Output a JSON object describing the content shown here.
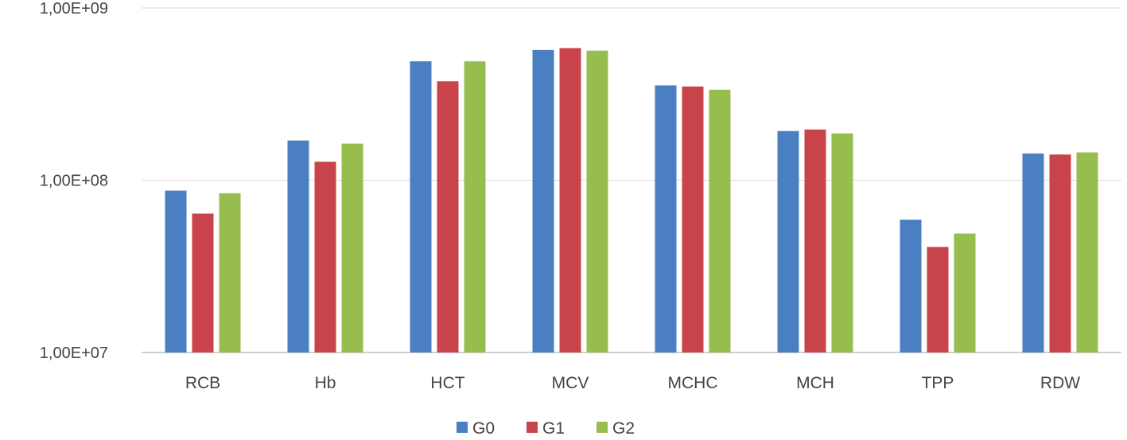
{
  "chart_data": {
    "type": "bar",
    "y_scale": "log10",
    "ylim": [
      10000000,
      1000000000
    ],
    "y_ticks": [
      {
        "value": 1000000000,
        "label": "1,00E+09"
      },
      {
        "value": 100000000,
        "label": "1,00E+08"
      },
      {
        "value": 10000000,
        "label": "1,00E+07"
      }
    ],
    "grid": true,
    "legend_position": "bottom-center",
    "categories": [
      "RCB",
      "Hb",
      "HCT",
      "MCV",
      "MCHC",
      "MCH",
      "TPP",
      "RDW"
    ],
    "series": [
      {
        "name": "G0",
        "color": "#4a7fc1",
        "values": [
          87000000,
          170000000,
          490000000,
          570000000,
          355000000,
          193000000,
          59000000,
          143000000
        ]
      },
      {
        "name": "G1",
        "color": "#c9444a",
        "values": [
          64000000,
          128000000,
          375000000,
          585000000,
          350000000,
          197000000,
          41000000,
          141000000
        ]
      },
      {
        "name": "G2",
        "color": "#97bd4e",
        "values": [
          84000000,
          163000000,
          490000000,
          565000000,
          335000000,
          187000000,
          49000000,
          145000000
        ]
      }
    ]
  }
}
